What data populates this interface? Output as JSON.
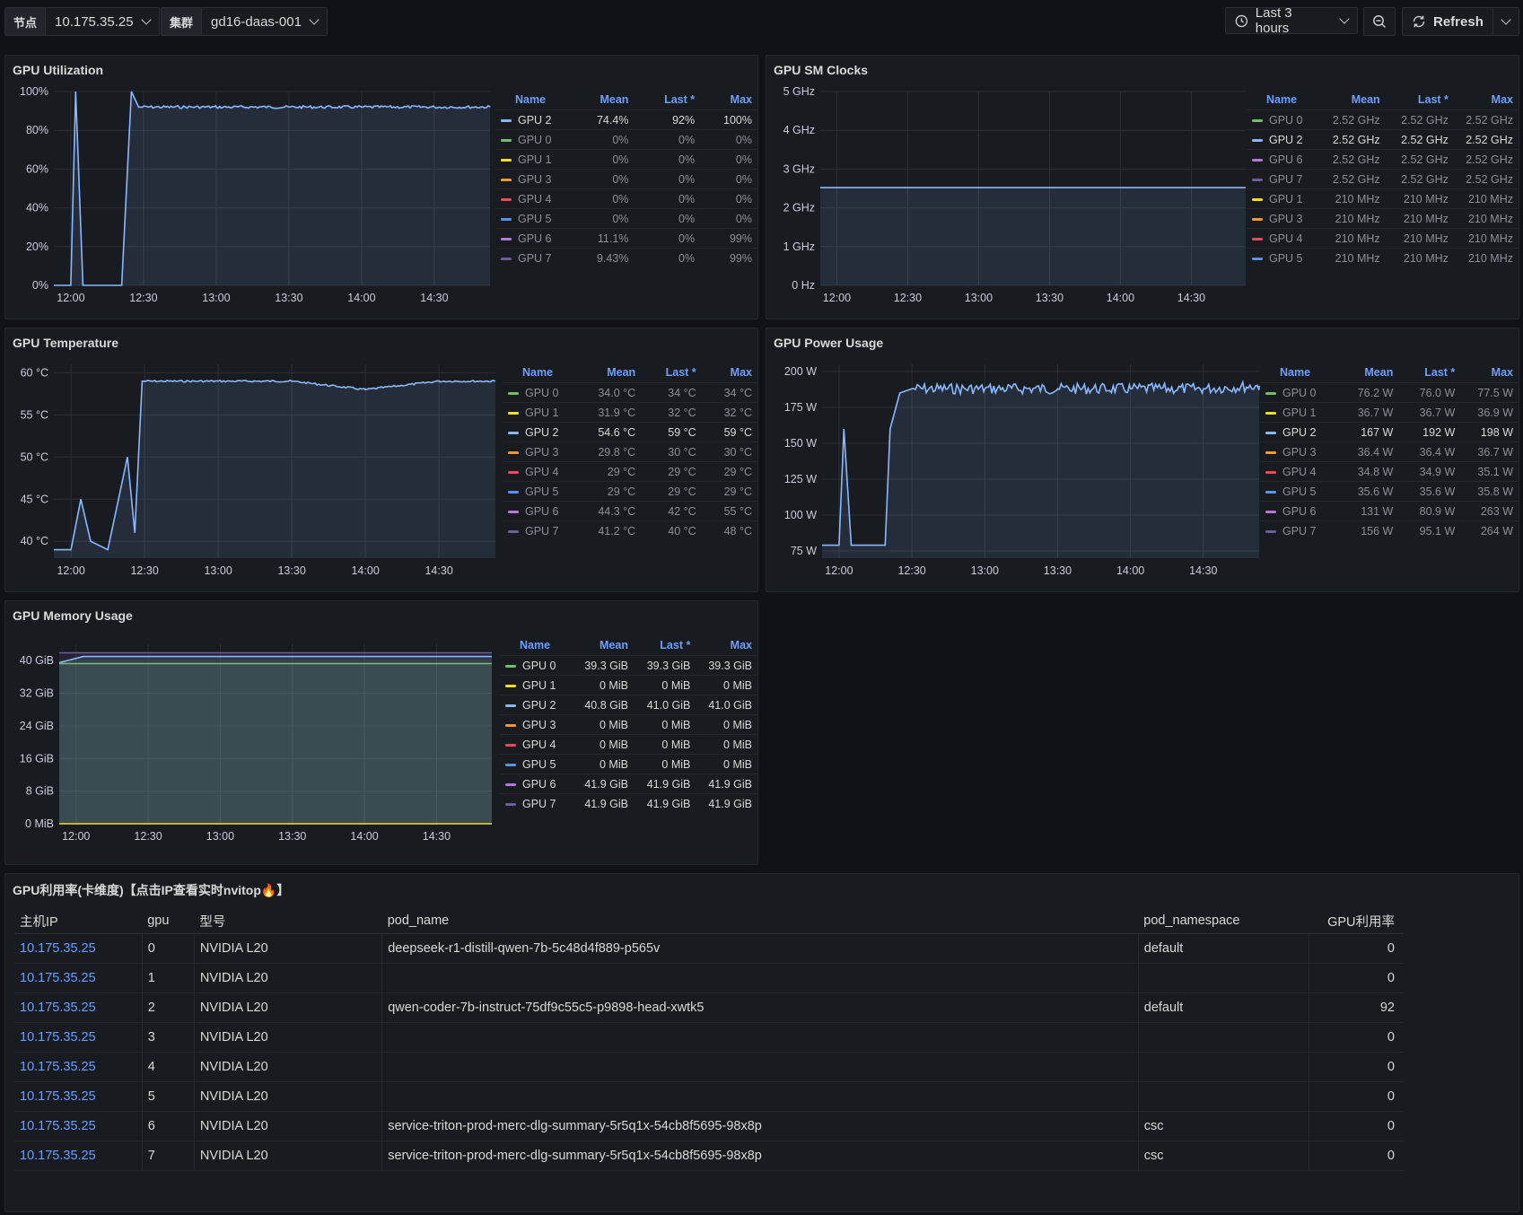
{
  "toolbar": {
    "node_label": "节点",
    "node_value": "10.175.35.25",
    "cluster_label": "集群",
    "cluster_value": "gd16-daas-001",
    "time_range": "Last 3 hours",
    "refresh_label": "Refresh"
  },
  "legend_headers": {
    "name": "Name",
    "mean": "Mean",
    "last": "Last *",
    "max": "Max"
  },
  "colors": {
    "GPU 0": "#73bf69",
    "GPU 1": "#fade2a",
    "GPU 2": "#8ab8ff",
    "GPU 3": "#ff9830",
    "GPU 4": "#f2495c",
    "GPU 5": "#5794f2",
    "GPU 6": "#b877d9",
    "GPU 7": "#705da0"
  },
  "panels": {
    "util": {
      "title": "GPU Utilization",
      "yticks": [
        "100%",
        "80%",
        "60%",
        "40%",
        "20%",
        "0%"
      ],
      "xticks": [
        "12:00",
        "12:30",
        "13:00",
        "13:30",
        "14:00",
        "14:30"
      ],
      "legend": [
        {
          "name": "GPU 2",
          "mean": "74.4%",
          "last": "92%",
          "max": "100%",
          "dim": false
        },
        {
          "name": "GPU 0",
          "mean": "0%",
          "last": "0%",
          "max": "0%",
          "dim": true
        },
        {
          "name": "GPU 1",
          "mean": "0%",
          "last": "0%",
          "max": "0%",
          "dim": true
        },
        {
          "name": "GPU 3",
          "mean": "0%",
          "last": "0%",
          "max": "0%",
          "dim": true
        },
        {
          "name": "GPU 4",
          "mean": "0%",
          "last": "0%",
          "max": "0%",
          "dim": true
        },
        {
          "name": "GPU 5",
          "mean": "0%",
          "last": "0%",
          "max": "0%",
          "dim": true
        },
        {
          "name": "GPU 6",
          "mean": "11.1%",
          "last": "0%",
          "max": "99%",
          "dim": true
        },
        {
          "name": "GPU 7",
          "mean": "9.43%",
          "last": "0%",
          "max": "99%",
          "dim": true
        }
      ]
    },
    "clocks": {
      "title": "GPU SM Clocks",
      "yticks": [
        "5 GHz",
        "4 GHz",
        "3 GHz",
        "2 GHz",
        "1 GHz",
        "0 Hz"
      ],
      "xticks": [
        "12:00",
        "12:30",
        "13:00",
        "13:30",
        "14:00",
        "14:30"
      ],
      "legend": [
        {
          "name": "GPU 0",
          "mean": "2.52 GHz",
          "last": "2.52 GHz",
          "max": "2.52 GHz",
          "dim": true
        },
        {
          "name": "GPU 2",
          "mean": "2.52 GHz",
          "last": "2.52 GHz",
          "max": "2.52 GHz",
          "dim": false
        },
        {
          "name": "GPU 6",
          "mean": "2.52 GHz",
          "last": "2.52 GHz",
          "max": "2.52 GHz",
          "dim": true
        },
        {
          "name": "GPU 7",
          "mean": "2.52 GHz",
          "last": "2.52 GHz",
          "max": "2.52 GHz",
          "dim": true
        },
        {
          "name": "GPU 1",
          "mean": "210 MHz",
          "last": "210 MHz",
          "max": "210 MHz",
          "dim": true
        },
        {
          "name": "GPU 3",
          "mean": "210 MHz",
          "last": "210 MHz",
          "max": "210 MHz",
          "dim": true
        },
        {
          "name": "GPU 4",
          "mean": "210 MHz",
          "last": "210 MHz",
          "max": "210 MHz",
          "dim": true
        },
        {
          "name": "GPU 5",
          "mean": "210 MHz",
          "last": "210 MHz",
          "max": "210 MHz",
          "dim": true
        }
      ]
    },
    "temp": {
      "title": "GPU Temperature",
      "yticks": [
        "60 °C",
        "55 °C",
        "50 °C",
        "45 °C",
        "40 °C"
      ],
      "xticks": [
        "12:00",
        "12:30",
        "13:00",
        "13:30",
        "14:00",
        "14:30"
      ],
      "legend": [
        {
          "name": "GPU 0",
          "mean": "34.0 °C",
          "last": "34 °C",
          "max": "34 °C",
          "dim": true
        },
        {
          "name": "GPU 1",
          "mean": "31.9 °C",
          "last": "32 °C",
          "max": "32 °C",
          "dim": true
        },
        {
          "name": "GPU 2",
          "mean": "54.6 °C",
          "last": "59 °C",
          "max": "59 °C",
          "dim": false
        },
        {
          "name": "GPU 3",
          "mean": "29.8 °C",
          "last": "30 °C",
          "max": "30 °C",
          "dim": true
        },
        {
          "name": "GPU 4",
          "mean": "29 °C",
          "last": "29 °C",
          "max": "29 °C",
          "dim": true
        },
        {
          "name": "GPU 5",
          "mean": "29 °C",
          "last": "29 °C",
          "max": "29 °C",
          "dim": true
        },
        {
          "name": "GPU 6",
          "mean": "44.3 °C",
          "last": "42 °C",
          "max": "55 °C",
          "dim": true
        },
        {
          "name": "GPU 7",
          "mean": "41.2 °C",
          "last": "40 °C",
          "max": "48 °C",
          "dim": true
        }
      ]
    },
    "power": {
      "title": "GPU Power Usage",
      "yticks": [
        "200 W",
        "175 W",
        "150 W",
        "125 W",
        "100 W",
        "75 W"
      ],
      "xticks": [
        "12:00",
        "12:30",
        "13:00",
        "13:30",
        "14:00",
        "14:30"
      ],
      "legend": [
        {
          "name": "GPU 0",
          "mean": "76.2 W",
          "last": "76.0 W",
          "max": "77.5 W",
          "dim": true
        },
        {
          "name": "GPU 1",
          "mean": "36.7 W",
          "last": "36.7 W",
          "max": "36.9 W",
          "dim": true
        },
        {
          "name": "GPU 2",
          "mean": "167 W",
          "last": "192 W",
          "max": "198 W",
          "dim": false
        },
        {
          "name": "GPU 3",
          "mean": "36.4 W",
          "last": "36.4 W",
          "max": "36.7 W",
          "dim": true
        },
        {
          "name": "GPU 4",
          "mean": "34.8 W",
          "last": "34.9 W",
          "max": "35.1 W",
          "dim": true
        },
        {
          "name": "GPU 5",
          "mean": "35.6 W",
          "last": "35.6 W",
          "max": "35.8 W",
          "dim": true
        },
        {
          "name": "GPU 6",
          "mean": "131 W",
          "last": "80.9 W",
          "max": "263 W",
          "dim": true
        },
        {
          "name": "GPU 7",
          "mean": "156 W",
          "last": "95.1 W",
          "max": "264 W",
          "dim": true
        }
      ]
    },
    "mem": {
      "title": "GPU Memory Usage",
      "yticks": [
        "40 GiB",
        "32 GiB",
        "24 GiB",
        "16 GiB",
        "8 GiB",
        "0 MiB"
      ],
      "xticks": [
        "12:00",
        "12:30",
        "13:00",
        "13:30",
        "14:00",
        "14:30"
      ],
      "legend": [
        {
          "name": "GPU 0",
          "mean": "39.3 GiB",
          "last": "39.3 GiB",
          "max": "39.3 GiB",
          "dim": false
        },
        {
          "name": "GPU 1",
          "mean": "0 MiB",
          "last": "0 MiB",
          "max": "0 MiB",
          "dim": false
        },
        {
          "name": "GPU 2",
          "mean": "40.8 GiB",
          "last": "41.0 GiB",
          "max": "41.0 GiB",
          "dim": false
        },
        {
          "name": "GPU 3",
          "mean": "0 MiB",
          "last": "0 MiB",
          "max": "0 MiB",
          "dim": false
        },
        {
          "name": "GPU 4",
          "mean": "0 MiB",
          "last": "0 MiB",
          "max": "0 MiB",
          "dim": false
        },
        {
          "name": "GPU 5",
          "mean": "0 MiB",
          "last": "0 MiB",
          "max": "0 MiB",
          "dim": false
        },
        {
          "name": "GPU 6",
          "mean": "41.9 GiB",
          "last": "41.9 GiB",
          "max": "41.9 GiB",
          "dim": false
        },
        {
          "name": "GPU 7",
          "mean": "41.9 GiB",
          "last": "41.9 GiB",
          "max": "41.9 GiB",
          "dim": false
        }
      ]
    }
  },
  "gpu_table": {
    "title": "GPU利用率(卡维度)【点击IP查看实时nvitop🔥】",
    "headers": [
      "主机IP",
      "gpu",
      "型号",
      "pod_name",
      "pod_namespace",
      "GPU利用率"
    ],
    "rows": [
      [
        "10.175.35.25",
        "0",
        "NVIDIA L20",
        "deepseek-r1-distill-qwen-7b-5c48d4f889-p565v",
        "default",
        "0"
      ],
      [
        "10.175.35.25",
        "1",
        "NVIDIA L20",
        "",
        "",
        "0"
      ],
      [
        "10.175.35.25",
        "2",
        "NVIDIA L20",
        "qwen-coder-7b-instruct-75df9c55c5-p9898-head-xwtk5",
        "default",
        "92"
      ],
      [
        "10.175.35.25",
        "3",
        "NVIDIA L20",
        "",
        "",
        "0"
      ],
      [
        "10.175.35.25",
        "4",
        "NVIDIA L20",
        "",
        "",
        "0"
      ],
      [
        "10.175.35.25",
        "5",
        "NVIDIA L20",
        "",
        "",
        "0"
      ],
      [
        "10.175.35.25",
        "6",
        "NVIDIA L20",
        "service-triton-prod-merc-dlg-summary-5r5q1x-54cb8f5695-98x8p",
        "csc",
        "0"
      ],
      [
        "10.175.35.25",
        "7",
        "NVIDIA L20",
        "service-triton-prod-merc-dlg-summary-5r5q1x-54cb8f5695-98x8p",
        "csc",
        "0"
      ]
    ]
  },
  "chart_data": [
    {
      "type": "line",
      "title": "GPU Utilization",
      "ylim": [
        0,
        100
      ],
      "x": [
        "11:53",
        "12:00",
        "12:02",
        "12:05",
        "12:21",
        "12:25",
        "12:28",
        "13:00",
        "13:30",
        "14:00",
        "14:30",
        "14:53"
      ],
      "series": [
        {
          "name": "GPU 2",
          "values": [
            0,
            0,
            100,
            0,
            0,
            100,
            92,
            92,
            92,
            92,
            92,
            92
          ]
        }
      ]
    },
    {
      "type": "line",
      "title": "GPU SM Clocks",
      "ylim": [
        0,
        5
      ],
      "x": [
        "11:53",
        "14:53"
      ],
      "series": [
        {
          "name": "GPU 2",
          "values": [
            2.52,
            2.52
          ]
        }
      ]
    },
    {
      "type": "line",
      "title": "GPU Temperature",
      "ylim": [
        38,
        61
      ],
      "x": [
        "11:53",
        "12:00",
        "12:04",
        "12:08",
        "12:15",
        "12:23",
        "12:26",
        "12:29",
        "13:00",
        "13:30",
        "14:00",
        "14:30",
        "14:53"
      ],
      "series": [
        {
          "name": "GPU 2",
          "values": [
            39,
            39,
            45,
            40,
            39,
            50,
            41,
            59,
            59,
            59,
            58,
            59,
            59
          ]
        }
      ]
    },
    {
      "type": "line",
      "title": "GPU Power Usage",
      "ylim": [
        70,
        205
      ],
      "x": [
        "11:53",
        "12:00",
        "12:02",
        "12:05",
        "12:19",
        "12:21",
        "12:25",
        "12:30",
        "13:00",
        "13:30",
        "14:00",
        "14:30",
        "14:53"
      ],
      "series": [
        {
          "name": "GPU 2",
          "values": [
            79,
            79,
            160,
            79,
            79,
            160,
            185,
            188,
            188,
            188,
            188,
            188,
            190
          ]
        }
      ]
    },
    {
      "type": "area",
      "title": "GPU Memory Usage",
      "ylim": [
        0,
        44
      ],
      "x": [
        "11:53",
        "12:03",
        "14:53"
      ],
      "series": [
        {
          "name": "GPU 7",
          "values": [
            41.9,
            41.9,
            41.9
          ]
        },
        {
          "name": "GPU 2",
          "values": [
            39.5,
            41.0,
            41.0
          ]
        },
        {
          "name": "GPU 0",
          "values": [
            39.3,
            39.3,
            39.3
          ]
        },
        {
          "name": "GPU 1",
          "values": [
            0,
            0,
            0
          ]
        }
      ]
    }
  ]
}
